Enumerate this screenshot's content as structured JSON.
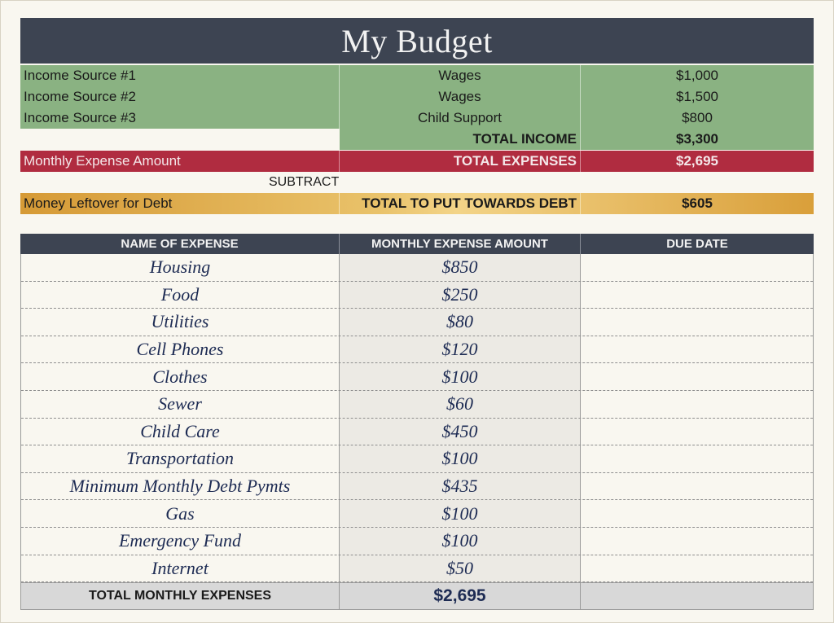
{
  "title": "My Budget",
  "income": [
    {
      "label": "Income Source #1",
      "type": "Wages",
      "amount": "$1,000"
    },
    {
      "label": "Income Source #2",
      "type": "Wages",
      "amount": "$1,500"
    },
    {
      "label": "Income Source #3",
      "type": "Child Support",
      "amount": "$800"
    }
  ],
  "total_income": {
    "label": "TOTAL INCOME",
    "amount": "$3,300"
  },
  "expenses_summary": {
    "label": "Monthly Expense Amount",
    "total_label": "TOTAL EXPENSES",
    "amount": "$2,695"
  },
  "subtract_label": "SUBTRACT",
  "leftover": {
    "label": "Money Leftover for Debt",
    "total_label": "TOTAL TO PUT TOWARDS DEBT",
    "amount": "$605"
  },
  "expense_table": {
    "headers": [
      "NAME OF EXPENSE",
      "MONTHLY EXPENSE AMOUNT",
      "DUE DATE"
    ],
    "rows": [
      {
        "name": "Housing",
        "amount": "$850",
        "due": ""
      },
      {
        "name": "Food",
        "amount": "$250",
        "due": ""
      },
      {
        "name": "Utilities",
        "amount": "$80",
        "due": ""
      },
      {
        "name": "Cell Phones",
        "amount": "$120",
        "due": ""
      },
      {
        "name": "Clothes",
        "amount": "$100",
        "due": ""
      },
      {
        "name": "Sewer",
        "amount": "$60",
        "due": ""
      },
      {
        "name": "Child Care",
        "amount": "$450",
        "due": ""
      },
      {
        "name": "Transportation",
        "amount": "$100",
        "due": ""
      },
      {
        "name": "Minimum Monthly Debt Pymts",
        "amount": "$435",
        "due": ""
      },
      {
        "name": "Gas",
        "amount": "$100",
        "due": ""
      },
      {
        "name": "Emergency Fund",
        "amount": "$100",
        "due": ""
      },
      {
        "name": "Internet",
        "amount": "$50",
        "due": ""
      }
    ],
    "total_label": "TOTAL MONTHLY EXPENSES",
    "total_amount": "$2,695"
  },
  "colors": {
    "header": "#3d4452",
    "income": "#8ab282",
    "expense": "#b02c40",
    "leftover": "#e3b456",
    "total_row": "#d8d8d8"
  },
  "icons": {
    "watermark": "money-bag-icon"
  }
}
